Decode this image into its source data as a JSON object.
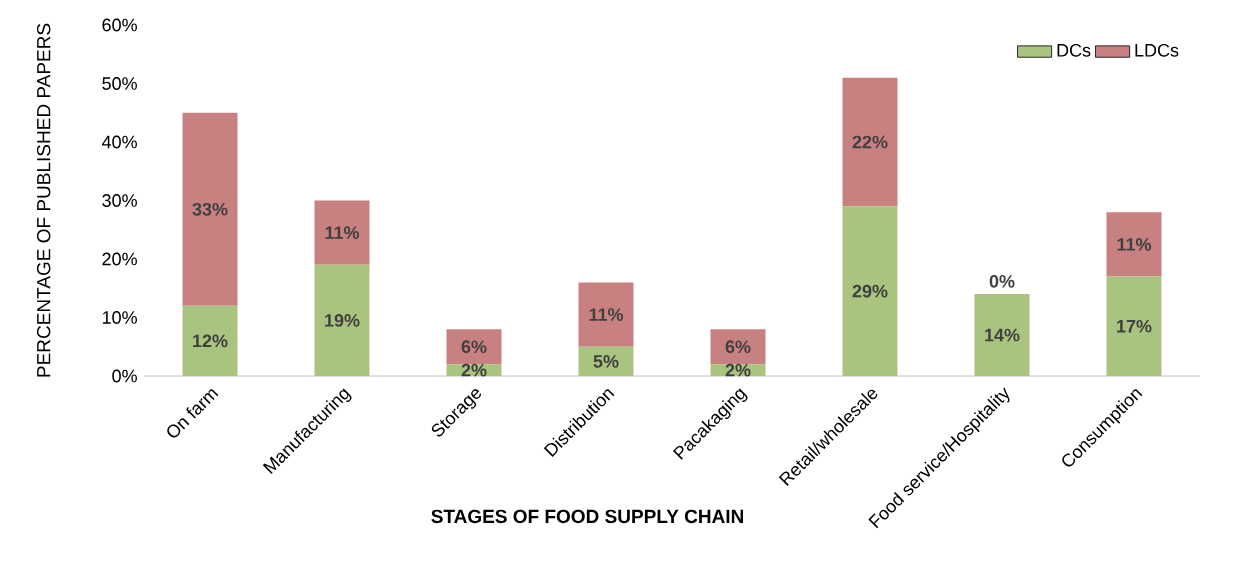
{
  "chart_data": {
    "type": "bar",
    "stacked": true,
    "xlabel": "STAGES OF FOOD SUPPLY CHAIN",
    "ylabel": "PERCENTAGE OF PUBLISHED PAPERS",
    "categories": [
      "On farm",
      "Manufacturing",
      "Storage",
      "Distribution",
      "Pacakaging",
      "Retail/wholesale",
      "Food service/Hospitality",
      "Consumption"
    ],
    "series": [
      {
        "name": "DCs",
        "color": "#a9c47f",
        "values": [
          12,
          19,
          2,
          5,
          2,
          29,
          14,
          17
        ],
        "value_labels": [
          "12%",
          "19%",
          "2%",
          "5%",
          "2%",
          "29%",
          "14%",
          "17%"
        ]
      },
      {
        "name": "LDCs",
        "color": "#c98080",
        "values": [
          33,
          11,
          6,
          11,
          6,
          22,
          0,
          11
        ],
        "value_labels": [
          "33%",
          "11%",
          "6%",
          "11%",
          "6%",
          "22%",
          "0%",
          "11%"
        ]
      }
    ],
    "ylim": [
      0,
      60
    ],
    "yticks": [
      {
        "value": 0,
        "label": "0%"
      },
      {
        "value": 10,
        "label": "10%"
      },
      {
        "value": 20,
        "label": "20%"
      },
      {
        "value": 30,
        "label": "30%"
      },
      {
        "value": 40,
        "label": "40%"
      },
      {
        "value": 50,
        "label": "50%"
      },
      {
        "value": 60,
        "label": "60%"
      }
    ],
    "legend": "top right",
    "grid": false
  }
}
